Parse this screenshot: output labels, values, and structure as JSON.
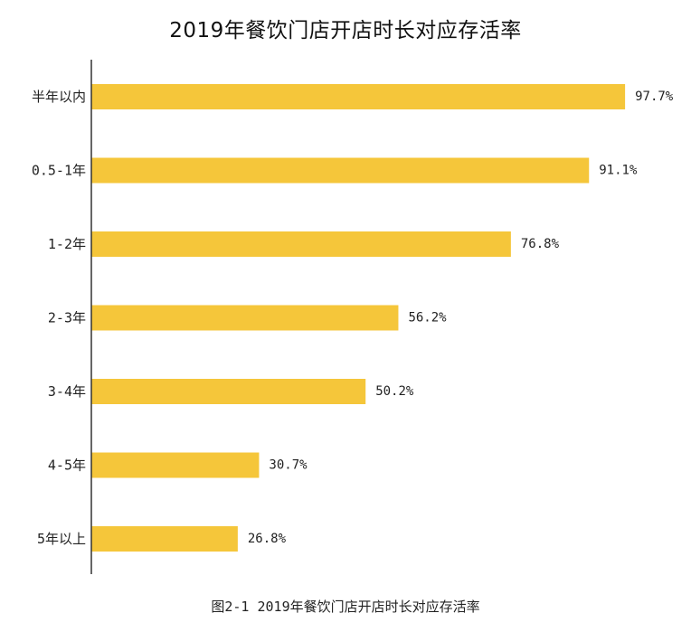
{
  "chart_data": {
    "type": "bar",
    "orientation": "horizontal",
    "title": "2019年餐饮门店开店时长对应存活率",
    "caption": "图2-1 2019年餐饮门店开店时长对应存活率",
    "categories": [
      "半年以内",
      "0.5-1年",
      "1-2年",
      "2-3年",
      "3-4年",
      "4-5年",
      "5年以上"
    ],
    "values": [
      97.7,
      91.1,
      76.8,
      56.2,
      50.2,
      30.7,
      26.8
    ],
    "value_labels": [
      "97.7%",
      "91.1%",
      "76.8%",
      "56.2%",
      "50.2%",
      "30.7%",
      "26.8%"
    ],
    "unit": "%",
    "xlim": [
      0,
      100
    ],
    "bar_color": "#F5C63A",
    "axis_color": "#333333",
    "grid": false,
    "legend": "none"
  }
}
